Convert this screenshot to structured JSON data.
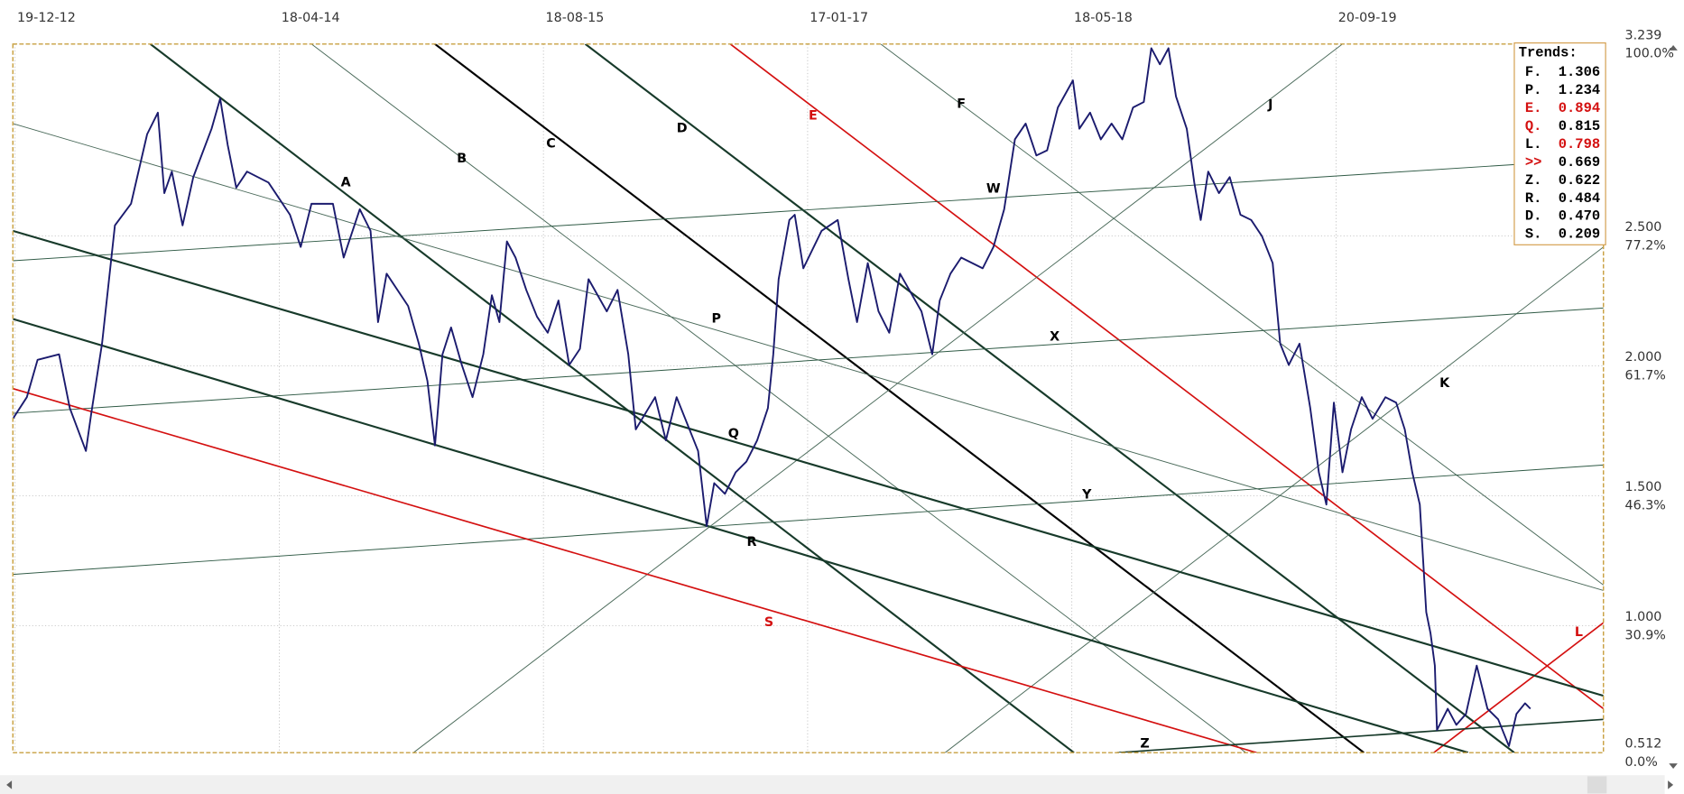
{
  "chart_data": {
    "type": "line",
    "x": [
      -2,
      11,
      21,
      41,
      51,
      66,
      71,
      81,
      93,
      108,
      123,
      133,
      139,
      146,
      156,
      166,
      183,
      191,
      198,
      206,
      216,
      236,
      256,
      266,
      276,
      296,
      306,
      321,
      331,
      338,
      346,
      366,
      376,
      384,
      391,
      398,
      406,
      416,
      426,
      436,
      444,
      451,
      458,
      466,
      476,
      486,
      496,
      506,
      516,
      526,
      534,
      551,
      561,
      571,
      578,
      596,
      606,
      616,
      636,
      644,
      651,
      661,
      671,
      681,
      691,
      701,
      706,
      711,
      721,
      726,
      734,
      751,
      766,
      776,
      784,
      794,
      804,
      814,
      824,
      844,
      854,
      861,
      871,
      881,
      901,
      911,
      921,
      931,
      941,
      951,
      961,
      971,
      985,
      991,
      1001,
      1011,
      1021,
      1031,
      1041,
      1051,
      1058,
      1066,
      1074,
      1081,
      1091,
      1098,
      1104,
      1111,
      1121,
      1131,
      1141,
      1151,
      1161,
      1171,
      1178,
      1186,
      1196,
      1206,
      1214,
      1221,
      1228,
      1236,
      1244,
      1254,
      1264,
      1276,
      1286,
      1294,
      1301,
      1308,
      1314,
      1318,
      1322,
      1324,
      1334,
      1342,
      1351,
      1361,
      1371,
      1381,
      1391,
      1398,
      1406,
      1411
    ],
    "series": [
      {
        "color": "#1b1b6e",
        "values": [
          1.797,
          1.88,
          2.024,
          2.045,
          1.838,
          1.673,
          1.818,
          2.086,
          2.541,
          2.624,
          2.892,
          2.975,
          2.665,
          2.748,
          2.541,
          2.727,
          2.913,
          3.029,
          2.851,
          2.686,
          2.748,
          2.706,
          2.582,
          2.458,
          2.624,
          2.624,
          2.417,
          2.603,
          2.52,
          2.169,
          2.355,
          2.231,
          2.086,
          1.942,
          1.694,
          2.045,
          2.148,
          2.004,
          1.88,
          2.045,
          2.272,
          2.169,
          2.479,
          2.417,
          2.293,
          2.19,
          2.128,
          2.252,
          2.004,
          2.066,
          2.334,
          2.21,
          2.293,
          2.045,
          1.756,
          1.88,
          1.714,
          1.88,
          1.673,
          1.384,
          1.549,
          1.508,
          1.591,
          1.632,
          1.714,
          1.838,
          2.045,
          2.334,
          2.562,
          2.582,
          2.376,
          2.52,
          2.562,
          2.334,
          2.169,
          2.396,
          2.21,
          2.128,
          2.355,
          2.21,
          2.045,
          2.252,
          2.355,
          2.417,
          2.376,
          2.458,
          2.603,
          2.872,
          2.933,
          2.81,
          2.83,
          2.995,
          3.099,
          2.913,
          2.975,
          2.872,
          2.933,
          2.872,
          2.995,
          3.016,
          3.223,
          3.161,
          3.223,
          3.037,
          2.913,
          2.706,
          2.562,
          2.748,
          2.665,
          2.727,
          2.582,
          2.562,
          2.5,
          2.396,
          2.086,
          2.004,
          2.086,
          1.838,
          1.591,
          1.467,
          1.859,
          1.591,
          1.756,
          1.88,
          1.797,
          1.88,
          1.859,
          1.756,
          1.591,
          1.467,
          1.053,
          0.971,
          0.847,
          0.599,
          0.681,
          0.619,
          0.661,
          0.847,
          0.681,
          0.64,
          0.537,
          0.661,
          0.702,
          0.681
        ]
      }
    ],
    "xlim": [
      -2,
      1479
    ],
    "xticks": [
      {
        "value": 0,
        "label": "19-12-12"
      },
      {
        "value": 246,
        "label": "18-04-14"
      },
      {
        "value": 492,
        "label": "18-08-15"
      },
      {
        "value": 738,
        "label": "17-01-17"
      },
      {
        "value": 984,
        "label": "18-05-18"
      },
      {
        "value": 1230,
        "label": "20-09-19"
      }
    ],
    "ylim": [
      0.512,
      3.239
    ],
    "yticks": [
      0.512,
      {
        "value": 1,
        "label": "1.000"
      },
      {
        "value": 1.5,
        "label": "1.500"
      },
      {
        "value": 2,
        "label": "2.000"
      },
      {
        "value": 2.5,
        "label": "2.500"
      },
      3.239
    ],
    "ytick_percent_labels": [
      "0.0%",
      "30.9%",
      "46.3%",
      "61.7%",
      "77.2%",
      "100.0%"
    ],
    "grid": true,
    "trendlines": [
      {
        "name": "A",
        "color": "#173a2a",
        "style": "thick",
        "x": [
          126,
          986
        ],
        "y": [
          3.239,
          0.512
        ],
        "label_x": 308,
        "label_y": 2.706
      },
      {
        "name": "B",
        "color": "#4a6a5a",
        "style": "thin",
        "x": [
          276,
          1146
        ],
        "y": [
          3.239,
          0.512
        ],
        "label_x": 416,
        "label_y": 2.797
      },
      {
        "name": "C",
        "color": "#000000",
        "style": "thick",
        "x": [
          391,
          1256
        ],
        "y": [
          3.239,
          0.512
        ],
        "label_x": 499,
        "label_y": 2.855
      },
      {
        "name": "D",
        "color": "#173a2a",
        "style": "thick",
        "x": [
          531,
          1396
        ],
        "y": [
          3.239,
          0.512
        ],
        "label_x": 621,
        "label_y": 2.913
      },
      {
        "name": "E",
        "color": "#d41010",
        "style": "medium",
        "x": [
          666,
          1479
        ],
        "y": [
          3.239,
          0.681
        ],
        "label_x": 743,
        "label_y": 2.962
      },
      {
        "name": "F",
        "color": "#4a6a5a",
        "style": "thin",
        "x": [
          806,
          1479
        ],
        "y": [
          3.239,
          1.157
        ],
        "label_x": 881,
        "label_y": 3.008
      },
      {
        "name": "J",
        "color": "#4a6a5a",
        "style": "thin",
        "x": [
          371,
          1236
        ],
        "y": [
          0.512,
          3.239
        ],
        "label_x": 1169,
        "label_y": 3.004
      },
      {
        "name": "K",
        "color": "#4a6a5a",
        "style": "thin",
        "x": [
          866,
          1479
        ],
        "y": [
          0.512,
          2.458
        ],
        "label_x": 1331,
        "label_y": 1.933
      },
      {
        "name": "L",
        "color": "#d41010",
        "style": "medium",
        "x": [
          1321,
          1479
        ],
        "y": [
          0.512,
          1.012
        ],
        "label_x": 1456,
        "label_y": 0.975
      },
      {
        "name": "W",
        "color": "#2f5a45",
        "style": "thin",
        "x": [
          -2,
          1479
        ],
        "y": [
          2.405,
          2.797
        ],
        "label_x": 911,
        "label_y": 2.681
      },
      {
        "name": "P",
        "color": "#4a6a5a",
        "style": "thin",
        "x": [
          -2,
          1479
        ],
        "y": [
          2.933,
          1.136
        ],
        "label_x": 653,
        "label_y": 2.181
      },
      {
        "name": "X",
        "color": "#2f5a45",
        "style": "thin",
        "x": [
          -2,
          1479
        ],
        "y": [
          1.818,
          2.223
        ],
        "label_x": 968,
        "label_y": 2.111
      },
      {
        "name": "Q",
        "color": "#173a2a",
        "style": "thick",
        "x": [
          -2,
          1479
        ],
        "y": [
          2.52,
          0.731
        ],
        "label_x": 669,
        "label_y": 1.739
      },
      {
        "name": "R",
        "color": "#173a2a",
        "style": "thick",
        "x": [
          -2,
          1353
        ],
        "y": [
          2.181,
          0.512
        ],
        "label_x": 686,
        "label_y": 1.322
      },
      {
        "name": "Y",
        "color": "#2f5a45",
        "style": "thin",
        "x": [
          -2,
          1479
        ],
        "y": [
          1.198,
          1.619
        ],
        "label_x": 998,
        "label_y": 1.504
      },
      {
        "name": "S",
        "color": "#d41010",
        "style": "medium",
        "x": [
          -2,
          1156
        ],
        "y": [
          1.913,
          0.512
        ],
        "label_x": 702,
        "label_y": 1.012
      },
      {
        "name": "Z",
        "color": "#173a2a",
        "style": "medium",
        "x": [
          1026,
          1479
        ],
        "y": [
          0.512,
          0.64
        ],
        "label_x": 1052,
        "label_y": 0.545
      }
    ],
    "trends_box": {
      "title": "Trends:",
      "entries": [
        {
          "label": "F.",
          "value": "1.306",
          "label_color": "#000",
          "value_color": "#000"
        },
        {
          "label": "P.",
          "value": "1.234",
          "label_color": "#000",
          "value_color": "#000"
        },
        {
          "label": "E.",
          "value": "0.894",
          "label_color": "#d41010",
          "value_color": "#d41010"
        },
        {
          "label": "Q.",
          "value": "0.815",
          "label_color": "#d41010",
          "value_color": "#000"
        },
        {
          "label": "L.",
          "value": "0.798",
          "label_color": "#000",
          "value_color": "#d41010"
        },
        {
          "label": ">>",
          "value": "0.669",
          "label_color": "#d41010",
          "value_color": "#000"
        },
        {
          "label": "Z.",
          "value": "0.622",
          "label_color": "#000",
          "value_color": "#000"
        },
        {
          "label": "R.",
          "value": "0.484",
          "label_color": "#000",
          "value_color": "#000"
        },
        {
          "label": "D.",
          "value": "0.470",
          "label_color": "#000",
          "value_color": "#000"
        },
        {
          "label": "S.",
          "value": "0.209",
          "label_color": "#000",
          "value_color": "#000"
        }
      ]
    }
  }
}
